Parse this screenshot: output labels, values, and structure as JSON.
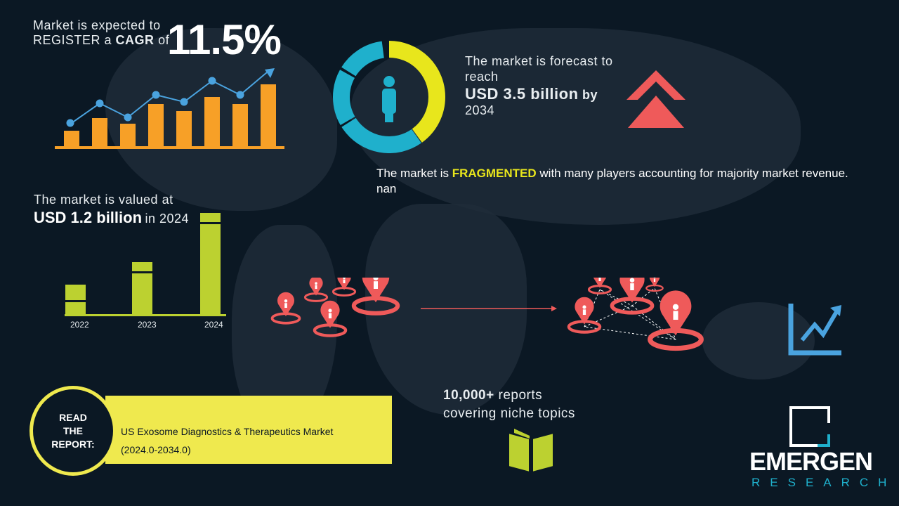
{
  "cagr": {
    "line1": "Market is expected to",
    "line2_pre": "REGISTER a",
    "line2_bold": "CAGR",
    "line2_post": "of",
    "value": "11.5%"
  },
  "forecast": {
    "line1": "The market is forecast to",
    "line2": "reach",
    "value": "USD 3.5 billion",
    "by": "by",
    "year": "2034"
  },
  "fragmented": {
    "pre": "The market is",
    "highlight": "FRAGMENTED",
    "post": "with many players accounting for majority market revenue. nan"
  },
  "valued": {
    "line1": "The market is valued at",
    "value": "USD 1.2 billion",
    "post": "in 2024",
    "years": [
      "2022",
      "2023",
      "2024"
    ]
  },
  "report": {
    "circle": [
      "READ",
      "THE",
      "REPORT:"
    ],
    "title": "US Exosome Diagnostics & Therapeutics Market",
    "period": "(2024.0-2034.0)"
  },
  "reports": {
    "line1_bold": "10,000+",
    "line1_rest": "reports",
    "line2": "covering niche topics"
  },
  "logo": {
    "name": "EMERGEN",
    "sub": "RESEARCH"
  },
  "colors": {
    "bg": "#0b1824",
    "yellow": "#e8e61c",
    "orange": "#f7a027",
    "blue": "#4aa3df",
    "green": "#bcd130",
    "red": "#ef5a5a",
    "cyan": "#1fb0cc"
  }
}
